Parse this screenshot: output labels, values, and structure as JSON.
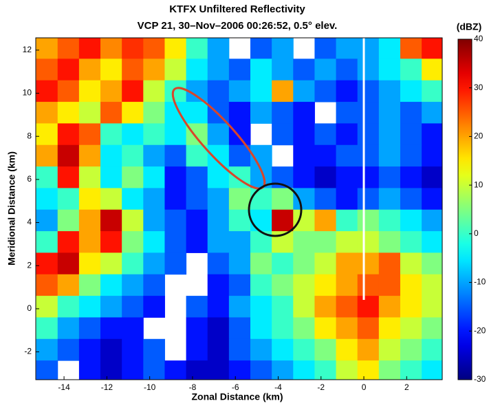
{
  "chart_data": {
    "type": "heatmap",
    "title": "KTFX Unfiltered Reflectivity",
    "subtitle": "VCP 21, 30–Nov–2006 00:26:52, 0.5° elev.",
    "x_label": "Zonal Distance (km)",
    "y_label": "Meridional Distance (km)",
    "colorbar_label": "(dBZ)",
    "xlim": [
      -15.32,
      3.66
    ],
    "ylim": [
      -3.29,
      12.57
    ],
    "xticks": [
      -14,
      -12,
      -10,
      -8,
      -6,
      -4,
      -2,
      0,
      2
    ],
    "yticks": [
      -2,
      0,
      2,
      4,
      6,
      8,
      10,
      12
    ],
    "clim": [
      -30,
      40
    ],
    "cticks": [
      -30,
      -20,
      -10,
      0,
      10,
      20,
      30,
      40
    ],
    "colormap": "jet",
    "x": [
      -14.8,
      -13.8,
      -12.8,
      -11.8,
      -10.8,
      -9.8,
      -8.8,
      -7.8,
      -6.8,
      -5.8,
      -4.8,
      -3.8,
      -2.8,
      -1.8,
      -0.8,
      0.2,
      1.2,
      2.2,
      3.2
    ],
    "y": [
      12.1,
      11.1,
      10.1,
      9.1,
      8.1,
      7.1,
      6.1,
      5.1,
      4.1,
      3.1,
      2.1,
      1.1,
      0.1,
      -0.9,
      -1.9,
      -2.9
    ],
    "z": [
      [
        20,
        25,
        30,
        22,
        28,
        25,
        15,
        0,
        -10,
        null,
        -15,
        -10,
        null,
        -15,
        -10,
        -10,
        -5,
        25,
        30
      ],
      [
        25,
        30,
        20,
        15,
        25,
        20,
        10,
        -5,
        -10,
        -15,
        -5,
        -10,
        -15,
        -10,
        -15,
        -10,
        -5,
        0,
        15
      ],
      [
        30,
        25,
        15,
        20,
        30,
        10,
        0,
        -10,
        -15,
        -10,
        -5,
        20,
        -10,
        -15,
        -20,
        -15,
        -10,
        -5,
        0
      ],
      [
        20,
        15,
        10,
        25,
        15,
        5,
        -5,
        -5,
        -15,
        -20,
        -10,
        -15,
        -20,
        null,
        -15,
        -15,
        -10,
        -15,
        -10
      ],
      [
        15,
        30,
        25,
        0,
        -5,
        0,
        -5,
        5,
        -10,
        -20,
        null,
        -15,
        -20,
        -15,
        -20,
        -15,
        -10,
        -15,
        -20
      ],
      [
        20,
        35,
        20,
        -5,
        0,
        -10,
        -15,
        0,
        -5,
        -15,
        -10,
        null,
        -20,
        -20,
        -15,
        -15,
        -10,
        -15,
        -20
      ],
      [
        0,
        30,
        10,
        -5,
        5,
        -5,
        -20,
        -15,
        -5,
        0,
        -10,
        -15,
        -20,
        -25,
        -20,
        -20,
        -15,
        -20,
        -25
      ],
      [
        -5,
        0,
        15,
        10,
        -5,
        -10,
        -20,
        -15,
        -10,
        5,
        0,
        5,
        -10,
        -15,
        -20,
        -15,
        -10,
        -15,
        -20
      ],
      [
        -10,
        5,
        20,
        35,
        10,
        -10,
        -15,
        -20,
        -10,
        0,
        -5,
        35,
        10,
        20,
        0,
        5,
        0,
        -5,
        -10
      ],
      [
        0,
        30,
        20,
        30,
        5,
        -5,
        -15,
        -20,
        -10,
        -10,
        0,
        10,
        5,
        5,
        10,
        10,
        5,
        0,
        -5
      ],
      [
        30,
        35,
        15,
        10,
        0,
        -10,
        -15,
        null,
        -15,
        -10,
        5,
        0,
        5,
        10,
        20,
        20,
        25,
        10,
        5
      ],
      [
        25,
        20,
        5,
        -5,
        -10,
        -15,
        null,
        null,
        -20,
        -15,
        0,
        5,
        10,
        15,
        20,
        25,
        25,
        15,
        10
      ],
      [
        10,
        0,
        -5,
        -10,
        -15,
        -20,
        null,
        -15,
        -20,
        -10,
        -5,
        0,
        10,
        20,
        25,
        30,
        20,
        15,
        10
      ],
      [
        0,
        -10,
        -15,
        -20,
        -20,
        null,
        null,
        -20,
        -25,
        -15,
        -5,
        0,
        5,
        15,
        20,
        25,
        15,
        10,
        5
      ],
      [
        -10,
        -15,
        -20,
        -25,
        -20,
        -15,
        null,
        -20,
        -25,
        -15,
        -10,
        -5,
        0,
        5,
        15,
        20,
        10,
        5,
        0
      ],
      [
        -15,
        null,
        -20,
        -25,
        -20,
        -15,
        -20,
        -25,
        -25,
        -20,
        -15,
        -10,
        -5,
        0,
        10,
        15,
        5,
        0,
        -5
      ]
    ]
  }
}
